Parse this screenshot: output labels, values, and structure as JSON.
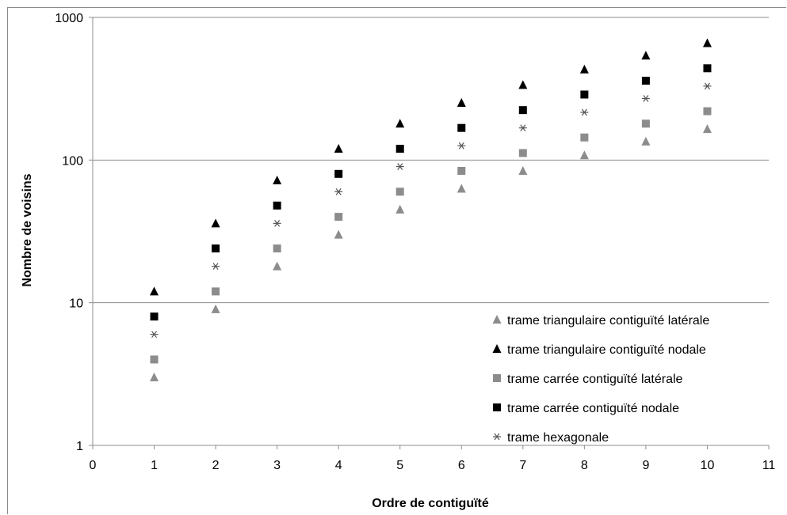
{
  "chart_data": {
    "type": "scatter",
    "title": "",
    "xlabel": "Ordre de contiguïté",
    "ylabel": "Nombre de voisins",
    "xlim": [
      0,
      11
    ],
    "ylim": [
      1,
      1000
    ],
    "yscale": "log",
    "x_ticks": [
      "0",
      "1",
      "2",
      "3",
      "4",
      "5",
      "6",
      "7",
      "8",
      "9",
      "10",
      "11"
    ],
    "y_ticks": [
      "1",
      "10",
      "100",
      "1000"
    ],
    "grid": "horizontal major gridlines",
    "legend_position": "bottom-right",
    "x": [
      1,
      2,
      3,
      4,
      5,
      6,
      7,
      8,
      9,
      10
    ],
    "series": [
      {
        "name": "trame triangulaire contiguïté latérale",
        "marker": "triangle",
        "color": "#8c8c8c",
        "values": [
          3,
          9,
          18,
          30,
          45,
          63,
          84,
          108,
          135,
          165
        ]
      },
      {
        "name": "trame triangulaire contiguïté nodale",
        "marker": "triangle",
        "color": "#000000",
        "values": [
          12,
          36,
          72,
          120,
          180,
          252,
          336,
          432,
          540,
          660
        ]
      },
      {
        "name": "trame carrée contiguïté latérale",
        "marker": "square",
        "color": "#8c8c8c",
        "values": [
          4,
          12,
          24,
          40,
          60,
          84,
          112,
          144,
          180,
          220
        ]
      },
      {
        "name": "trame carrée contiguïté nodale",
        "marker": "square",
        "color": "#000000",
        "values": [
          8,
          24,
          48,
          80,
          120,
          168,
          224,
          288,
          360,
          440
        ]
      },
      {
        "name": "trame hexagonale",
        "marker": "star",
        "color": "#555555",
        "values": [
          6,
          18,
          36,
          60,
          90,
          126,
          168,
          216,
          270,
          330
        ]
      }
    ]
  }
}
